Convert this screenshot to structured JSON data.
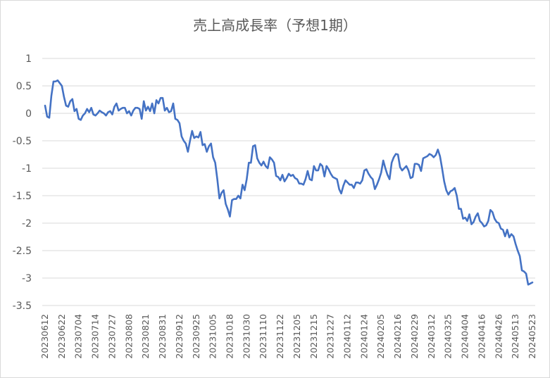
{
  "chart_data": {
    "type": "line",
    "title": "売上高成長率（予想1期）",
    "xlabel": "",
    "ylabel": "",
    "ylim": [
      -3.5,
      1
    ],
    "yticks": [
      1,
      0.5,
      0,
      -0.5,
      -1,
      -1.5,
      -2,
      -2.5,
      -3,
      -3.5
    ],
    "ytick_labels": [
      "1",
      "0.5",
      "0",
      "-0.5",
      "-1",
      "-1.5",
      "-2",
      "-2.5",
      "-3",
      "-3.5"
    ],
    "grid": true,
    "legend": "none",
    "x_tick_labels": [
      "20230612",
      "20230622",
      "20230704",
      "20230714",
      "20230727",
      "20230808",
      "20230821",
      "20230831",
      "20230912",
      "20230925",
      "20231005",
      "20231018",
      "20231030",
      "20231110",
      "20231122",
      "20231205",
      "20231215",
      "20231227",
      "20240112",
      "20240124",
      "20240205",
      "20240216",
      "20240229",
      "20240312",
      "20240325",
      "20240404",
      "20240416",
      "20240426",
      "20240513",
      "20240523"
    ],
    "x_tick_every": 8,
    "series": [
      {
        "color": "#4472c4",
        "values": [
          0.14,
          -0.06,
          -0.08,
          0.32,
          0.58,
          0.58,
          0.6,
          0.55,
          0.5,
          0.3,
          0.14,
          0.12,
          0.22,
          0.26,
          0.04,
          0.08,
          -0.1,
          -0.12,
          -0.04,
          0.0,
          0.08,
          0.02,
          0.1,
          -0.02,
          -0.04,
          0.0,
          0.05,
          0.02,
          0.0,
          -0.04,
          0.02,
          0.04,
          -0.02,
          0.12,
          0.18,
          0.05,
          0.08,
          0.1,
          0.1,
          0.0,
          0.04,
          -0.04,
          0.05,
          0.1,
          0.1,
          0.08,
          -0.1,
          0.22,
          0.05,
          0.12,
          0.04,
          0.18,
          0.0,
          0.24,
          0.18,
          0.28,
          0.28,
          0.05,
          0.1,
          0.02,
          0.04,
          0.18,
          -0.1,
          -0.12,
          -0.18,
          -0.42,
          -0.5,
          -0.55,
          -0.7,
          -0.5,
          -0.32,
          -0.45,
          -0.42,
          -0.44,
          -0.34,
          -0.58,
          -0.56,
          -0.7,
          -0.6,
          -0.55,
          -0.8,
          -0.9,
          -1.2,
          -1.55,
          -1.45,
          -1.4,
          -1.65,
          -1.75,
          -1.88,
          -1.58,
          -1.56,
          -1.56,
          -1.5,
          -1.55,
          -1.3,
          -1.4,
          -1.2,
          -0.9,
          -0.9,
          -0.6,
          -0.58,
          -0.82,
          -0.9,
          -0.95,
          -0.88,
          -0.96,
          -1.0,
          -0.8,
          -0.84,
          -0.9,
          -1.14,
          -1.16,
          -1.22,
          -1.12,
          -1.24,
          -1.18,
          -1.1,
          -1.14,
          -1.12,
          -1.18,
          -1.2,
          -1.28,
          -1.28,
          -1.3,
          -1.2,
          -1.05,
          -1.2,
          -1.22,
          -0.96,
          -1.04,
          -1.04,
          -0.92,
          -0.96,
          -1.15,
          -0.96,
          -1.02,
          -1.1,
          -1.16,
          -1.18,
          -1.2,
          -1.38,
          -1.46,
          -1.32,
          -1.22,
          -1.26,
          -1.3,
          -1.3,
          -1.36,
          -1.26,
          -1.26,
          -1.28,
          -1.22,
          -1.04,
          -1.02,
          -1.1,
          -1.16,
          -1.2,
          -1.38,
          -1.3,
          -1.2,
          -1.08,
          -0.86,
          -1.0,
          -1.12,
          -1.2,
          -0.9,
          -0.8,
          -0.74,
          -0.75,
          -0.98,
          -1.04,
          -1.0,
          -0.96,
          -1.04,
          -1.18,
          -1.16,
          -0.92,
          -0.92,
          -0.94,
          -1.05,
          -0.82,
          -0.8,
          -0.78,
          -0.74,
          -0.76,
          -0.8,
          -0.76,
          -0.66,
          -0.78,
          -1.0,
          -1.24,
          -1.4,
          -1.48,
          -1.42,
          -1.4,
          -1.36,
          -1.5,
          -1.74,
          -1.74,
          -1.92,
          -1.9,
          -1.96,
          -1.84,
          -2.02,
          -1.98,
          -1.88,
          -1.82,
          -1.96,
          -2.0,
          -2.06,
          -2.04,
          -1.96,
          -1.76,
          -1.8,
          -1.92,
          -1.98,
          -2.0,
          -2.1,
          -2.12,
          -2.24,
          -2.12,
          -2.26,
          -2.2,
          -2.24,
          -2.38,
          -2.5,
          -2.6,
          -2.86,
          -2.88,
          -2.92,
          -3.12,
          -3.1,
          -3.08
        ]
      }
    ]
  }
}
